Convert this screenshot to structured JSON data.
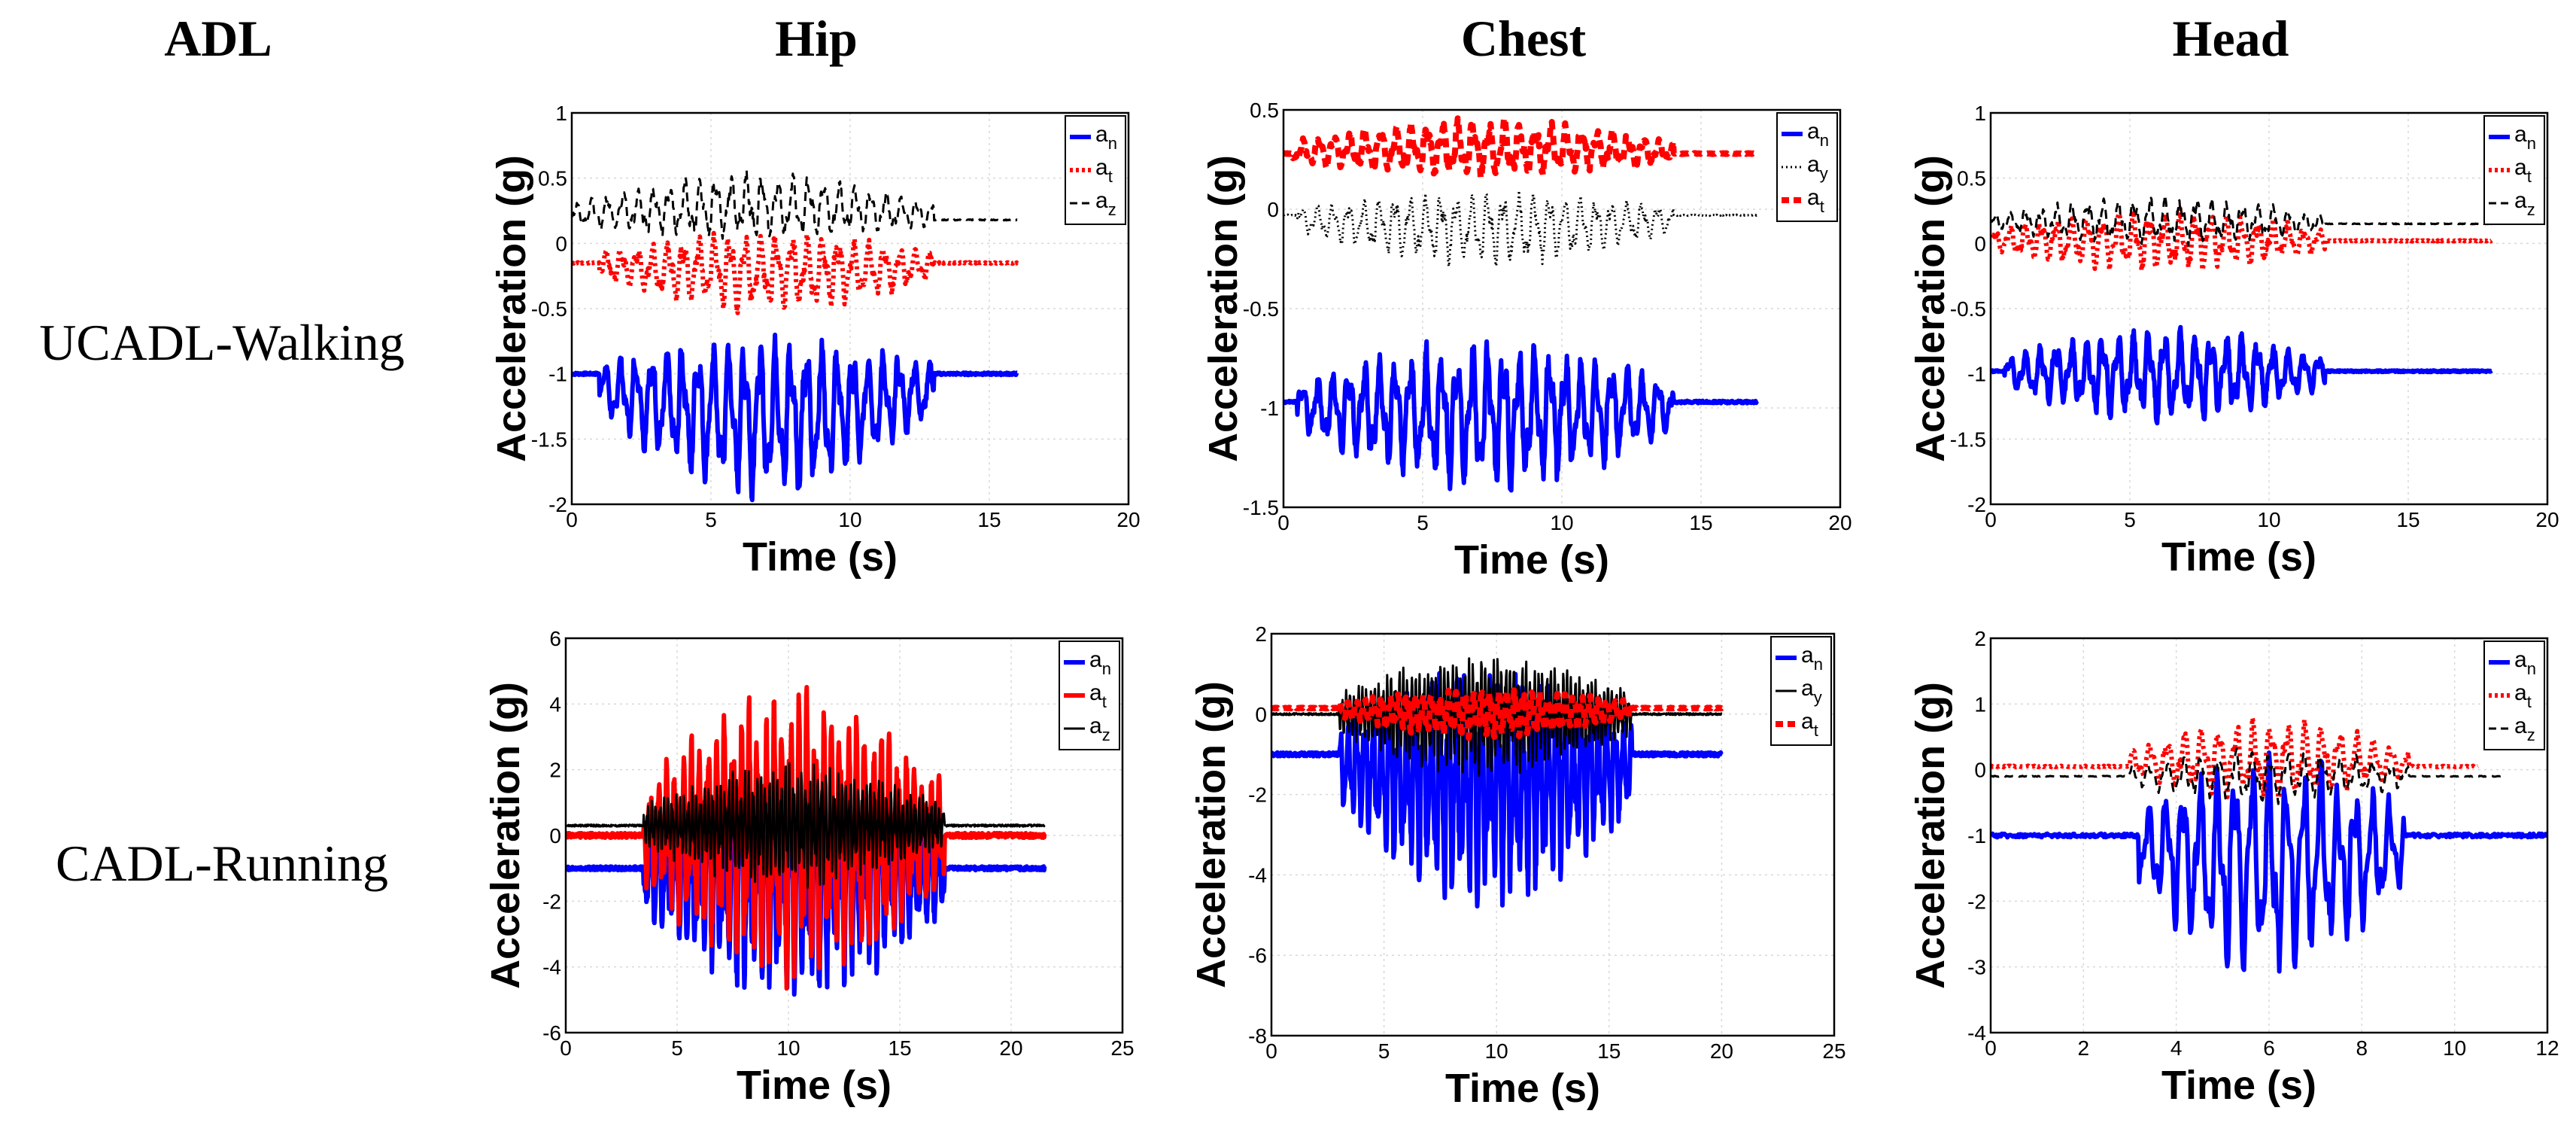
{
  "header": {
    "adl_label": "ADL",
    "columns": [
      "Hip",
      "Chest",
      "Head"
    ],
    "rows": [
      "UCADL-Walking",
      "CADL-Running"
    ]
  },
  "colors": {
    "an": "#0000ff",
    "at": "#ff0000",
    "az": "#000000",
    "grid": "#d8d8d8"
  },
  "chart_data": [
    {
      "type": "line",
      "id": "walk-hip",
      "row": "UCADL-Walking",
      "column": "Hip",
      "xlabel": "Time (s)",
      "ylabel": "Acceleration (g)",
      "xlim": [
        0,
        20
      ],
      "ylim": [
        -2,
        1
      ],
      "xticks": [
        "0",
        "5",
        "10",
        "15",
        "20"
      ],
      "yticks": [
        "-2",
        "-1.5",
        "-1",
        "-0.5",
        "0",
        "0.5",
        "1"
      ],
      "series": [
        {
          "name": "an",
          "label_main": "a",
          "label_sub": "n",
          "style": "solid",
          "color": "#0000ff",
          "width": 6,
          "base": -1.0,
          "amp": 0.45,
          "freq": 1.8,
          "skew": -0.25,
          "start": 1,
          "end": 13,
          "duration": 16
        },
        {
          "name": "at",
          "label_main": "a",
          "label_sub": "t",
          "style": "dot",
          "color": "#ff0000",
          "width": 6,
          "base": -0.15,
          "amp": 0.25,
          "freq": 1.8,
          "skew": -0.05,
          "start": 1,
          "end": 13,
          "duration": 16
        },
        {
          "name": "az",
          "label_main": "a",
          "label_sub": "z",
          "style": "dash",
          "color": "#000000",
          "width": 3,
          "base": 0.18,
          "amp": 0.2,
          "freq": 1.8,
          "skew": 0.08,
          "start": 0,
          "end": 13,
          "duration": 16
        }
      ]
    },
    {
      "type": "line",
      "id": "walk-chest",
      "row": "UCADL-Walking",
      "column": "Chest",
      "xlabel": "Time (s)",
      "ylabel": "Acceleration (g)",
      "xlim": [
        0,
        20
      ],
      "ylim": [
        -1.5,
        0.5
      ],
      "xticks": [
        "0",
        "5",
        "10",
        "15",
        "20"
      ],
      "yticks": [
        "-1.5",
        "-1",
        "-0.5",
        "0",
        "0.5"
      ],
      "series": [
        {
          "name": "an",
          "label_main": "a",
          "label_sub": "n",
          "style": "solid",
          "color": "#0000ff",
          "width": 6,
          "base": -0.97,
          "amp": 0.3,
          "freq": 1.8,
          "skew": -0.05,
          "start": 0.5,
          "end": 14,
          "duration": 17
        },
        {
          "name": "ay",
          "label_main": "a",
          "label_sub": "y",
          "style": "dotline",
          "color": "#000000",
          "width": 3,
          "base": -0.03,
          "amp": 0.15,
          "freq": 1.8,
          "skew": -0.05,
          "start": 0.5,
          "end": 14,
          "duration": 17
        },
        {
          "name": "at",
          "label_main": "a",
          "label_sub": "t",
          "style": "dash",
          "color": "#ff0000",
          "width": 8,
          "base": 0.28,
          "amp": 0.12,
          "freq": 1.8,
          "skew": 0.02,
          "start": 0.3,
          "end": 14,
          "duration": 17
        }
      ]
    },
    {
      "type": "line",
      "id": "walk-head",
      "row": "UCADL-Walking",
      "column": "Head",
      "xlabel": "Time (s)",
      "ylabel": "Acceleration (g)",
      "xlim": [
        0,
        20
      ],
      "ylim": [
        -2,
        1
      ],
      "xticks": [
        "0",
        "5",
        "10",
        "15",
        "20"
      ],
      "yticks": [
        "-2",
        "-1.5",
        "-1",
        "-0.5",
        "0",
        "0.5",
        "1"
      ],
      "series": [
        {
          "name": "an",
          "label_main": "a",
          "label_sub": "n",
          "style": "solid",
          "color": "#0000ff",
          "width": 6,
          "base": -0.98,
          "amp": 0.3,
          "freq": 1.8,
          "skew": -0.02,
          "start": 0.5,
          "end": 12,
          "duration": 18
        },
        {
          "name": "at",
          "label_main": "a",
          "label_sub": "t",
          "style": "dot",
          "color": "#ff0000",
          "width": 6,
          "base": 0.02,
          "amp": 0.2,
          "freq": 1.8,
          "skew": 0.0,
          "start": 0,
          "end": 12,
          "duration": 18
        },
        {
          "name": "az",
          "label_main": "a",
          "label_sub": "z",
          "style": "dash",
          "color": "#000000",
          "width": 3,
          "base": 0.15,
          "amp": 0.15,
          "freq": 1.8,
          "skew": 0.02,
          "start": 0,
          "end": 12,
          "duration": 18
        }
      ]
    },
    {
      "type": "line",
      "id": "run-hip",
      "row": "CADL-Running",
      "column": "Hip",
      "xlabel": "Time (s)",
      "ylabel": "Acceleration (g)",
      "xlim": [
        0,
        25
      ],
      "ylim": [
        -6,
        6
      ],
      "xticks": [
        "0",
        "5",
        "10",
        "15",
        "20",
        "25"
      ],
      "yticks": [
        "-6",
        "-4",
        "-2",
        "0",
        "2",
        "4",
        "6"
      ],
      "series": [
        {
          "name": "an",
          "label_main": "a",
          "label_sub": "n",
          "style": "solid",
          "color": "#0000ff",
          "width": 6,
          "base": -1.0,
          "amp": 2.8,
          "freq": 2.7,
          "skew": -0.4,
          "start": 3.5,
          "end": 17,
          "duration": 21.5
        },
        {
          "name": "at",
          "label_main": "a",
          "label_sub": "t",
          "style": "solid",
          "color": "#ff0000",
          "width": 6,
          "base": 0.0,
          "amp": 3.6,
          "freq": 2.7,
          "skew": 0.0,
          "start": 3.5,
          "end": 17,
          "duration": 21.5
        },
        {
          "name": "az",
          "label_main": "a",
          "label_sub": "z",
          "style": "solid",
          "color": "#000000",
          "width": 3,
          "base": 0.3,
          "amp": 1.5,
          "freq": 5.5,
          "skew": 0.0,
          "start": 3.5,
          "end": 17,
          "duration": 21.5
        }
      ]
    },
    {
      "type": "line",
      "id": "run-chest",
      "row": "CADL-Running",
      "column": "Chest",
      "xlabel": "Time (s)",
      "ylabel": "Acceleration (g)",
      "xlim": [
        0,
        25
      ],
      "ylim": [
        -8,
        2
      ],
      "xticks": [
        "0",
        "5",
        "10",
        "15",
        "20",
        "25"
      ],
      "yticks": [
        "-8",
        "-6",
        "-4",
        "-2",
        "0",
        "2"
      ],
      "series": [
        {
          "name": "an",
          "label_main": "a",
          "label_sub": "n",
          "style": "solid",
          "color": "#0000ff",
          "width": 6,
          "base": -1.0,
          "amp": 2.4,
          "freq": 2.7,
          "skew": -0.6,
          "start": 3,
          "end": 16,
          "duration": 20
        },
        {
          "name": "ay",
          "label_main": "a",
          "label_sub": "y",
          "style": "solid",
          "color": "#000000",
          "width": 3,
          "base": 0.0,
          "amp": 1.2,
          "freq": 5.5,
          "skew": 0.0,
          "start": 3,
          "end": 16,
          "duration": 20
        },
        {
          "name": "at",
          "label_main": "a",
          "label_sub": "t",
          "style": "dash",
          "color": "#ff0000",
          "width": 8,
          "base": 0.15,
          "amp": 0.5,
          "freq": 2.7,
          "skew": -0.1,
          "start": 3,
          "end": 16,
          "duration": 20
        }
      ]
    },
    {
      "type": "line",
      "id": "run-head",
      "row": "CADL-Running",
      "column": "Head",
      "xlabel": "Time (s)",
      "ylabel": "Acceleration (g)",
      "xlim": [
        0,
        12
      ],
      "ylim": [
        -4,
        2
      ],
      "xticks": [
        "0",
        "2",
        "4",
        "6",
        "8",
        "10",
        "12"
      ],
      "yticks": [
        "-4",
        "-3",
        "-2",
        "-1",
        "0",
        "1",
        "2"
      ],
      "series": [
        {
          "name": "an",
          "label_main": "a",
          "label_sub": "n",
          "style": "solid",
          "color": "#0000ff",
          "width": 6,
          "base": -1.0,
          "amp": 1.4,
          "freq": 2.7,
          "skew": -0.35,
          "start": 3.2,
          "end": 8.9,
          "duration": 12
        },
        {
          "name": "at",
          "label_main": "a",
          "label_sub": "t",
          "style": "dot",
          "color": "#ff0000",
          "width": 6,
          "base": 0.05,
          "amp": 0.5,
          "freq": 2.7,
          "skew": 0.1,
          "start": 3,
          "end": 9,
          "duration": 10.5
        },
        {
          "name": "az",
          "label_main": "a",
          "label_sub": "z",
          "style": "dash",
          "color": "#000000",
          "width": 3,
          "base": -0.1,
          "amp": 0.35,
          "freq": 2.7,
          "skew": 0.0,
          "start": 3,
          "end": 9,
          "duration": 11
        }
      ]
    }
  ]
}
